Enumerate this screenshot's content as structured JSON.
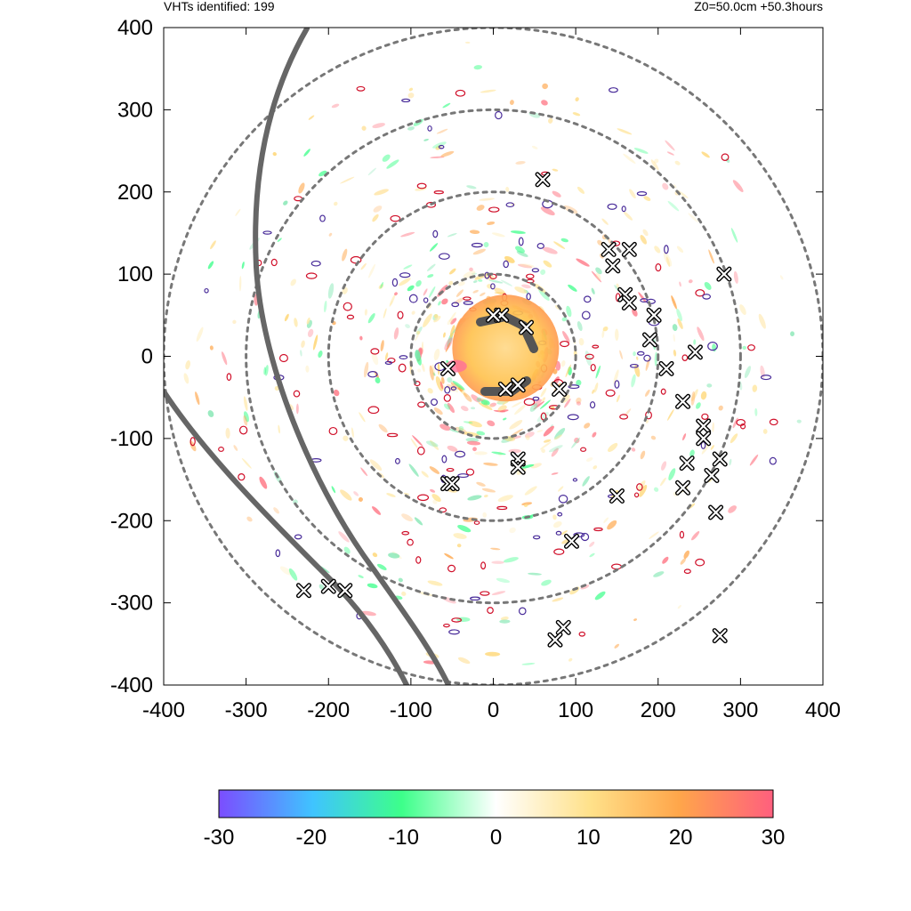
{
  "header": {
    "left": "VHTs identified: 199",
    "right": "Z0=50.0cm  +50.3hours"
  },
  "chart_data": {
    "type": "scatter",
    "xlim": [
      -400,
      400
    ],
    "ylim": [
      -400,
      400
    ],
    "xticks": [
      "-400",
      "-300",
      "-200",
      "-100",
      "0",
      "100",
      "200",
      "300",
      "400"
    ],
    "yticks": [
      "400",
      "300",
      "200",
      "100",
      "0",
      "-100",
      "-200",
      "-300",
      "-400"
    ],
    "range_rings": [
      100,
      200,
      300,
      400
    ],
    "vht_markers": [
      [
        60,
        215
      ],
      [
        140,
        130
      ],
      [
        165,
        130
      ],
      [
        145,
        110
      ],
      [
        160,
        75
      ],
      [
        165,
        65
      ],
      [
        195,
        50
      ],
      [
        190,
        20
      ],
      [
        245,
        5
      ],
      [
        210,
        -15
      ],
      [
        10,
        50
      ],
      [
        0,
        50
      ],
      [
        40,
        35
      ],
      [
        -55,
        -15
      ],
      [
        30,
        -35
      ],
      [
        15,
        -40
      ],
      [
        80,
        -40
      ],
      [
        230,
        -55
      ],
      [
        255,
        -85
      ],
      [
        255,
        -100
      ],
      [
        275,
        -125
      ],
      [
        235,
        -130
      ],
      [
        265,
        -145
      ],
      [
        230,
        -160
      ],
      [
        30,
        -125
      ],
      [
        30,
        -135
      ],
      [
        -55,
        -155
      ],
      [
        -50,
        -155
      ],
      [
        150,
        -170
      ],
      [
        270,
        -190
      ],
      [
        95,
        -225
      ],
      [
        -230,
        -285
      ],
      [
        -200,
        -280
      ],
      [
        -180,
        -285
      ],
      [
        85,
        -330
      ],
      [
        75,
        -345
      ],
      [
        275,
        -340
      ],
      [
        280,
        100
      ]
    ],
    "colorbar": {
      "ticks": [
        "-30",
        "-20",
        "-10",
        "0",
        "10",
        "20",
        "30"
      ],
      "range": [
        -30,
        30
      ],
      "colors": [
        "#7b4dff",
        "#3fc4ff",
        "#3dff8a",
        "#ffffff",
        "#ffe18a",
        "#ffa64a",
        "#ff5f7e"
      ]
    }
  }
}
